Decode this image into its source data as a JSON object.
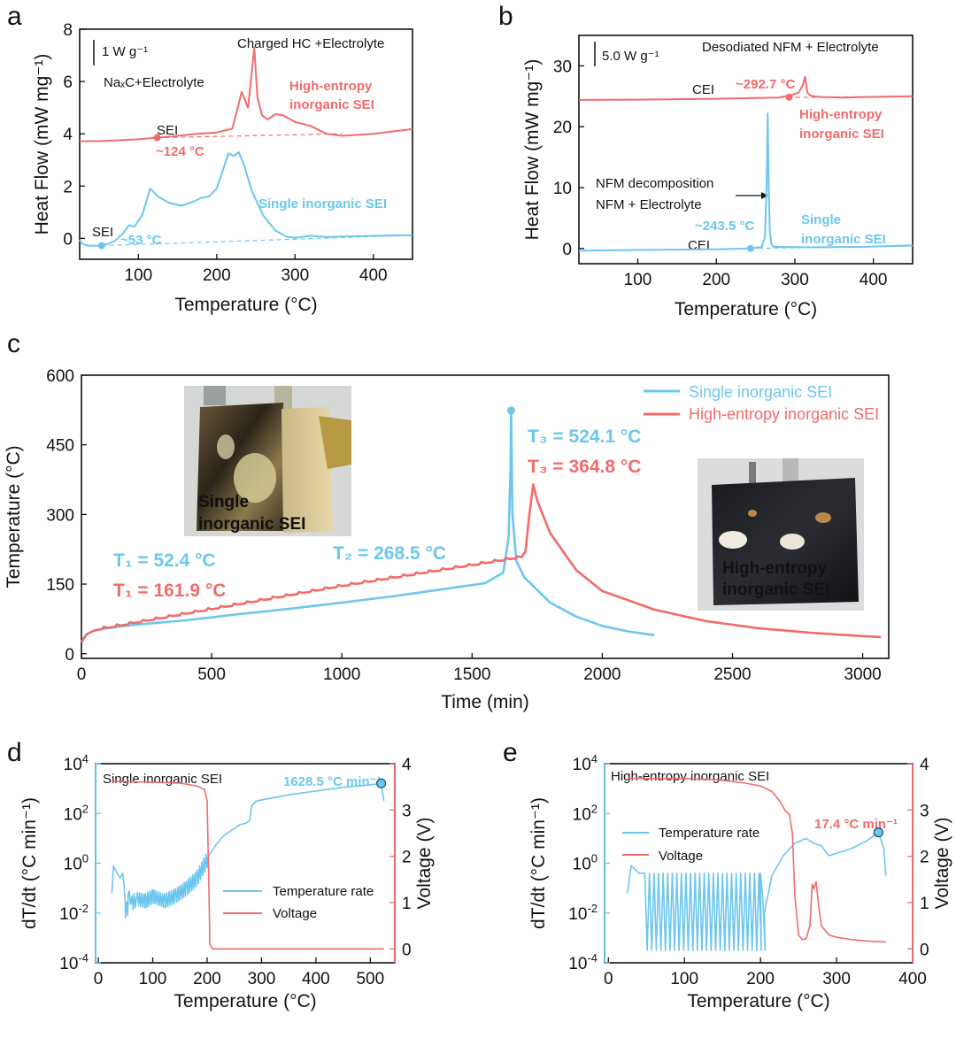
{
  "colors": {
    "single": "#6cc6ee",
    "high": "#f26b6b",
    "axis": "#111111"
  },
  "panels": {
    "a": {
      "letter": "a",
      "scale_bar": "1 W g⁻¹",
      "label_nac": "NaₓC+Electrolyte",
      "label_hc": "Charged HC +Electrolyte",
      "high_label1": "High-entropy",
      "high_label2": "inorganic SEI",
      "single_label": "Single inorganic SEI",
      "sei_high": "SEI",
      "sei_single": "SEI",
      "onset_high": "~124 °C",
      "onset_single": "~53 °C"
    },
    "b": {
      "letter": "b",
      "scale_bar": "5.0 W g⁻¹",
      "title": "Desodiated NFM + Electrolyte",
      "cei_high": "CEI",
      "onset_high": "~292.7 °C",
      "high_label1": "High-entropy",
      "high_label2": "inorganic SEI",
      "decomp1": "NFM  decomposition",
      "decomp2": "NFM + Electrolyte",
      "onset_single": "~243.5 °C",
      "single_label1": "Single",
      "single_label2": "inorganic SEI",
      "cei_single": "CEI"
    },
    "c": {
      "letter": "c",
      "legend_single": "Single inorganic SEI",
      "legend_high": "High-entropy inorganic SEI",
      "t3_single": "T₃ = 524.1 °C",
      "t3_high": "T₃ = 364.8 °C",
      "t2": "T₂ = 268.5 °C",
      "t1_single": "T₁ = 52.4 °C",
      "t1_high": "T₁ = 161.9 °C",
      "photo_single1": "Single",
      "photo_single2": "inorganic SEI",
      "photo_high1": "High-entropy",
      "photo_high2": "inorganic SEI"
    },
    "d": {
      "letter": "d",
      "title": "Single inorganic SEI",
      "peak": "1628.5 °C min⁻¹",
      "legend_rate": "Temperature rate",
      "legend_voltage": "Voltage"
    },
    "e": {
      "letter": "e",
      "title": "High-entropy inorganic SEI",
      "peak": "17.4 °C min⁻¹",
      "legend_rate": "Temperature rate",
      "legend_voltage": "Voltage"
    }
  },
  "chart_data": [
    {
      "panel": "a",
      "type": "line",
      "xlabel": "Temperature (°C)",
      "ylabel": "Heat Flow (mW mg⁻¹)",
      "xlim": [
        25,
        450
      ],
      "ylim": [
        -0.8,
        8
      ],
      "xticks": [
        100,
        200,
        300,
        400
      ],
      "yticks": [
        0,
        2,
        4,
        6,
        8
      ],
      "series": [
        {
          "name": "High-entropy inorganic SEI",
          "color": "high",
          "x": [
            25,
            50,
            80,
            100,
            124,
            150,
            175,
            200,
            220,
            232,
            240,
            245,
            248,
            252,
            258,
            265,
            275,
            285,
            300,
            320,
            340,
            360,
            400,
            450
          ],
          "y": [
            3.72,
            3.72,
            3.76,
            3.79,
            3.85,
            3.92,
            4.0,
            4.05,
            4.2,
            5.6,
            5.0,
            6.4,
            7.3,
            5.4,
            4.7,
            4.55,
            4.75,
            4.7,
            4.45,
            4.3,
            4.0,
            3.92,
            4.0,
            4.18
          ]
        },
        {
          "name": "Single inorganic SEI",
          "color": "single",
          "x": [
            25,
            28,
            35,
            50,
            60,
            70,
            80,
            88,
            95,
            105,
            115,
            125,
            140,
            155,
            170,
            180,
            190,
            200,
            210,
            215,
            222,
            228,
            235,
            245,
            260,
            275,
            290,
            300,
            320,
            340,
            370,
            410,
            450
          ],
          "y": [
            -0.05,
            -0.2,
            -0.28,
            -0.28,
            -0.22,
            -0.1,
            0.18,
            0.5,
            0.45,
            0.9,
            1.9,
            1.6,
            1.35,
            1.25,
            1.4,
            1.55,
            1.6,
            1.9,
            2.8,
            3.25,
            3.15,
            3.3,
            2.8,
            1.8,
            0.85,
            0.3,
            0.05,
            0.02,
            0.1,
            0.05,
            0.08,
            0.1,
            0.12
          ]
        }
      ]
    },
    {
      "panel": "b",
      "type": "line",
      "xlabel": "Temperature (°C)",
      "ylabel": "Heat Flow (mW mg⁻¹)",
      "xlim": [
        25,
        450
      ],
      "ylim": [
        -2.5,
        35
      ],
      "xticks": [
        100,
        200,
        300,
        400
      ],
      "yticks": [
        0,
        10,
        20,
        30
      ],
      "series": [
        {
          "name": "High-entropy inorganic SEI",
          "color": "high",
          "x": [
            25,
            100,
            200,
            280,
            295,
            305,
            310,
            313,
            316,
            320,
            330,
            360,
            400,
            450
          ],
          "y": [
            24.4,
            24.45,
            24.6,
            24.8,
            25.2,
            25.6,
            26.8,
            28.2,
            25.6,
            25.1,
            24.9,
            24.8,
            24.9,
            25.0
          ]
        },
        {
          "name": "Single inorganic SEI",
          "color": "single",
          "x": [
            25,
            100,
            200,
            243.5,
            258,
            262,
            264,
            265.5,
            266.5,
            268,
            270,
            272,
            280,
            320,
            380,
            450
          ],
          "y": [
            -0.35,
            -0.25,
            -0.15,
            0.0,
            0.25,
            2,
            10,
            22.2,
            12,
            3,
            0.8,
            0.3,
            0.25,
            0.2,
            0.25,
            0.5
          ]
        }
      ]
    },
    {
      "panel": "c",
      "type": "line",
      "xlabel": "Time (min)",
      "ylabel": "Temperature (°C)",
      "xlim": [
        0,
        3100
      ],
      "ylim": [
        -10,
        600
      ],
      "xticks": [
        0,
        500,
        1000,
        1500,
        2000,
        2500,
        3000
      ],
      "yticks": [
        0,
        150,
        300,
        450,
        600
      ],
      "series": [
        {
          "name": "Single inorganic SEI",
          "color": "single",
          "x": [
            0,
            20,
            50,
            100,
            200,
            400,
            600,
            800,
            1000,
            1200,
            1400,
            1550,
            1620,
            1640,
            1648,
            1650,
            1655,
            1670,
            1700,
            1800,
            1900,
            2000,
            2100,
            2200
          ],
          "y": [
            25,
            42,
            50,
            55,
            62,
            72,
            85,
            97,
            110,
            124,
            140,
            152,
            175,
            250,
            400,
            524.1,
            300,
            200,
            165,
            110,
            80,
            60,
            48,
            40
          ]
        },
        {
          "name": "High-entropy inorganic SEI",
          "color": "high",
          "x": [
            0,
            20,
            50,
            100,
            200,
            400,
            600,
            800,
            1000,
            1200,
            1400,
            1600,
            1690,
            1705,
            1720,
            1735,
            1750,
            1800,
            1900,
            2000,
            2200,
            2400,
            2600,
            2800,
            3000,
            3070
          ],
          "y": [
            25,
            42,
            50,
            56,
            66,
            86,
            106,
            126,
            146,
            164,
            182,
            200,
            208,
            220,
            300,
            364.8,
            330,
            260,
            180,
            135,
            95,
            70,
            55,
            45,
            38,
            36
          ]
        }
      ]
    },
    {
      "panel": "d",
      "type": "line",
      "xlabel": "Temperature (°C)",
      "ylabel": "dT/dt (°C min⁻¹)",
      "y2label": "Voltage (V)",
      "xlim": [
        -5,
        545
      ],
      "ylim_log10": [
        -4,
        4
      ],
      "y2lim": [
        -0.3,
        4
      ],
      "xticks": [
        0,
        100,
        200,
        300,
        400,
        500
      ],
      "yticks_log": [
        "10^4",
        "10^2",
        "10^0",
        "10^-2",
        "10^-4"
      ],
      "y2ticks": [
        0,
        1,
        2,
        3,
        4
      ],
      "series": [
        {
          "name": "Temperature rate",
          "color": "single",
          "axis": "left",
          "scale": "log10",
          "x": [
            25,
            28,
            32,
            40,
            45,
            50,
            55,
            60,
            70,
            85,
            100,
            120,
            140,
            160,
            180,
            200,
            215,
            230,
            260,
            270,
            278,
            282,
            290,
            350,
            400,
            450,
            500,
            520,
            525
          ],
          "y": [
            -1.2,
            -0.1,
            -0.3,
            -0.6,
            -0.4,
            -2.2,
            -1.2,
            -1.6,
            -1.4,
            -1.5,
            -1.3,
            -1.5,
            -1.3,
            -1.0,
            -0.6,
            0.2,
            0.7,
            1.1,
            1.55,
            1.6,
            1.7,
            2.3,
            2.5,
            2.75,
            2.9,
            3.05,
            3.15,
            3.21,
            2.5
          ]
        },
        {
          "name": "Voltage",
          "color": "high",
          "axis": "right",
          "x": [
            25,
            100,
            150,
            180,
            195,
            200,
            203,
            205,
            210,
            300,
            400,
            500,
            525
          ],
          "y": [
            3.62,
            3.6,
            3.58,
            3.52,
            3.45,
            3.2,
            1.5,
            0.1,
            0.0,
            0.0,
            0.0,
            0.0,
            0.0
          ]
        }
      ]
    },
    {
      "panel": "e",
      "type": "line",
      "xlabel": "Temperature (°C)",
      "ylabel": "dT/dt (°C min⁻¹)",
      "y2label": "Voltage (V)",
      "xlim": [
        -5,
        400
      ],
      "ylim_log10": [
        -4,
        4
      ],
      "y2lim": [
        -0.3,
        4
      ],
      "xticks": [
        0,
        100,
        200,
        300,
        400
      ],
      "yticks_log": [
        "10^4",
        "10^2",
        "10^0",
        "10^-2",
        "10^-4"
      ],
      "y2ticks": [
        0,
        1,
        2,
        3,
        4
      ],
      "series": [
        {
          "name": "Temperature rate",
          "color": "single",
          "axis": "left",
          "scale": "log10",
          "x": [
            25,
            30,
            40,
            45,
            200,
            205,
            215,
            230,
            245,
            260,
            270,
            280,
            290,
            300,
            320,
            340,
            355,
            362,
            365
          ],
          "y": [
            -1.2,
            -0.1,
            -0.4,
            -0.4,
            -0.4,
            -2.0,
            -0.5,
            0.3,
            0.8,
            1.0,
            0.8,
            0.7,
            0.3,
            0.4,
            0.6,
            0.9,
            1.24,
            0.6,
            -0.5
          ]
        },
        {
          "name": "Voltage",
          "color": "high",
          "axis": "right",
          "x": [
            25,
            100,
            150,
            180,
            200,
            215,
            225,
            232,
            238,
            242,
            245,
            250,
            255,
            260,
            265,
            268,
            270,
            273,
            276,
            280,
            290,
            300,
            320,
            340,
            365
          ],
          "y": [
            3.68,
            3.68,
            3.64,
            3.58,
            3.52,
            3.4,
            3.2,
            3.0,
            2.9,
            2.5,
            1.2,
            0.3,
            0.2,
            0.22,
            0.5,
            1.4,
            1.3,
            1.45,
            1.0,
            0.5,
            0.3,
            0.25,
            0.2,
            0.17,
            0.15
          ]
        }
      ]
    }
  ]
}
